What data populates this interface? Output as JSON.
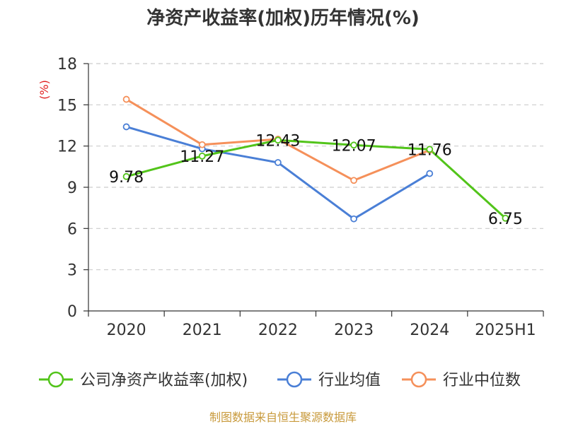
{
  "chart_data": {
    "type": "line",
    "title": "净资产收益率(加权)历年情况(%)",
    "ylabel": "(%)",
    "categories": [
      "2020",
      "2021",
      "2022",
      "2023",
      "2024",
      "2025H1"
    ],
    "ylim": [
      0,
      18
    ],
    "yticks": [
      0,
      3,
      6,
      9,
      12,
      15,
      18
    ],
    "grid": true,
    "legend_position": "bottom",
    "series": [
      {
        "name": "公司净资产收益率(加权)",
        "color": "#52c41a",
        "values": [
          9.78,
          11.27,
          12.43,
          12.07,
          11.76,
          6.75
        ],
        "labels": [
          "9.78",
          "11.27",
          "12.43",
          "12.07",
          "11.76",
          "6.75"
        ]
      },
      {
        "name": "行业均值",
        "color": "#4a7fd6",
        "values": [
          13.4,
          11.8,
          10.8,
          6.7,
          10.0,
          null
        ]
      },
      {
        "name": "行业中位数",
        "color": "#f5905a",
        "values": [
          15.4,
          12.1,
          12.5,
          9.5,
          11.7,
          null
        ]
      }
    ],
    "source": "制图数据来自恒生聚源数据库"
  }
}
